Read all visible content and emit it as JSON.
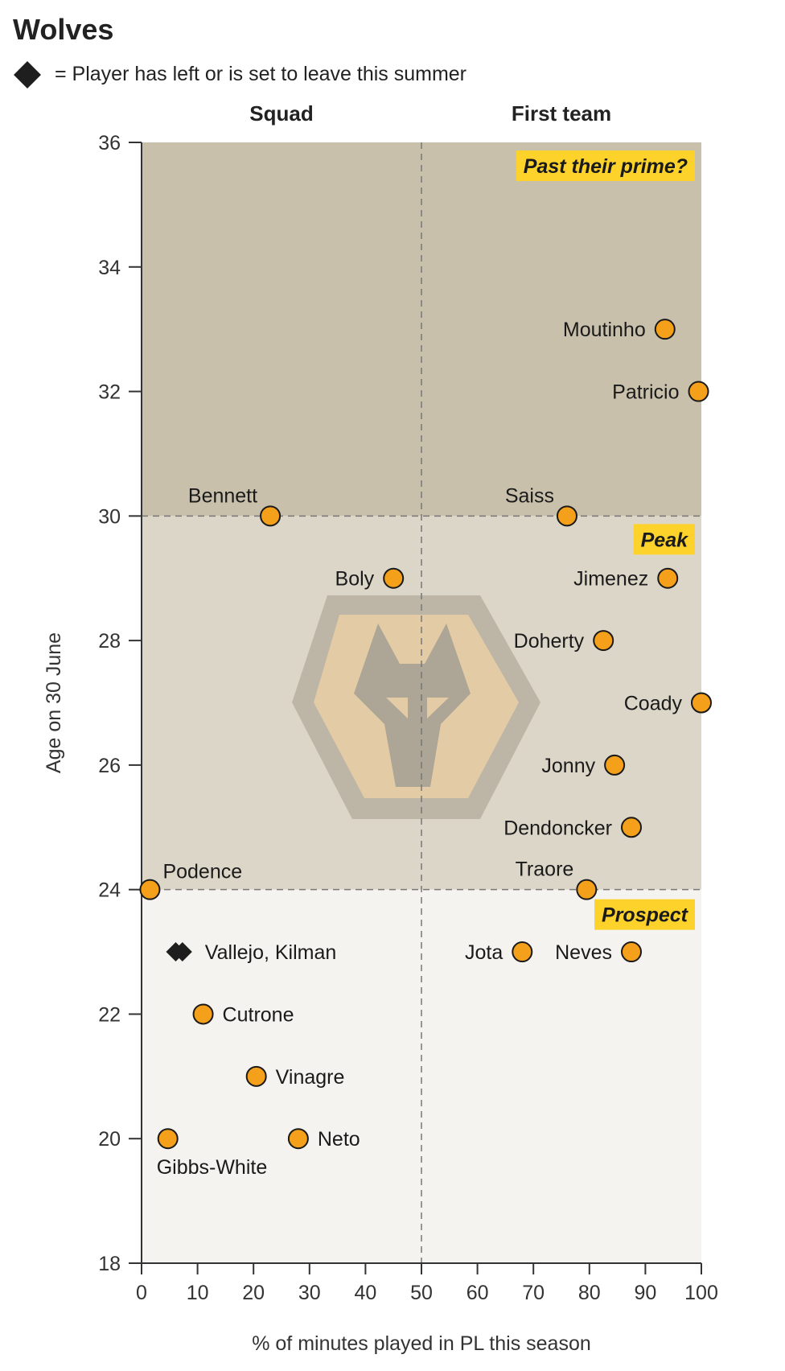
{
  "title": "Wolves",
  "legend": {
    "marker": "diamond",
    "text": "= Player has left or is set to leave this summer"
  },
  "colors": {
    "past_prime": "#c8c0ab",
    "peak": "#dcd6c8",
    "prospect": "#f4f3ef",
    "point": "#f5a01a",
    "left_marker": "#1e1e1e",
    "label_badge": "#fdd32b",
    "logo_outer": "#bdb5a6",
    "logo_inner": "#e3cba6",
    "logo_wolf": "#ada596"
  },
  "chart_data": {
    "type": "scatter",
    "xlabel": "% of minutes played in PL this season",
    "ylabel": "Age on 30 June",
    "xlim": [
      0,
      100
    ],
    "ylim": [
      18,
      36
    ],
    "xticks": [
      0,
      10,
      20,
      30,
      40,
      50,
      60,
      70,
      80,
      90,
      100
    ],
    "yticks": [
      18,
      20,
      22,
      24,
      26,
      28,
      30,
      32,
      34,
      36
    ],
    "column_headers": [
      {
        "label": "Squad",
        "x_center": 25
      },
      {
        "label": "First team",
        "x_center": 75
      }
    ],
    "dividers": {
      "x": 50,
      "y": [
        24,
        30
      ]
    },
    "zones": [
      {
        "label": "Past their prime?",
        "y_from": 30,
        "y_to": 36
      },
      {
        "label": "Peak",
        "y_from": 24,
        "y_to": 30
      },
      {
        "label": "Prospect",
        "y_from": 18,
        "y_to": 24
      }
    ],
    "points": [
      {
        "name": "Moutinho",
        "x": 93.5,
        "y": 33,
        "label_pos": "left"
      },
      {
        "name": "Patricio",
        "x": 99.5,
        "y": 32,
        "label_pos": "left"
      },
      {
        "name": "Bennett",
        "x": 23,
        "y": 30,
        "label_pos": "top-left"
      },
      {
        "name": "Saiss",
        "x": 76,
        "y": 30,
        "label_pos": "top-left"
      },
      {
        "name": "Boly",
        "x": 45,
        "y": 29,
        "label_pos": "left"
      },
      {
        "name": "Jimenez",
        "x": 94,
        "y": 29,
        "label_pos": "left"
      },
      {
        "name": "Doherty",
        "x": 82.5,
        "y": 28,
        "label_pos": "left"
      },
      {
        "name": "Coady",
        "x": 100,
        "y": 27,
        "label_pos": "left"
      },
      {
        "name": "Jonny",
        "x": 84.5,
        "y": 26,
        "label_pos": "left"
      },
      {
        "name": "Dendoncker",
        "x": 87.5,
        "y": 25,
        "label_pos": "left"
      },
      {
        "name": "Podence",
        "x": 1.5,
        "y": 24,
        "label_pos": "top-right"
      },
      {
        "name": "Traore",
        "x": 79.5,
        "y": 24,
        "label_pos": "top-left"
      },
      {
        "name": "Jota",
        "x": 68,
        "y": 23,
        "label_pos": "left"
      },
      {
        "name": "Neves",
        "x": 87.5,
        "y": 23,
        "label_pos": "left"
      },
      {
        "name": "Cutrone",
        "x": 11,
        "y": 22,
        "label_pos": "right"
      },
      {
        "name": "Vinagre",
        "x": 20.5,
        "y": 21,
        "label_pos": "right"
      },
      {
        "name": "Gibbs-White",
        "x": 4.7,
        "y": 20,
        "label_pos": "bottom"
      },
      {
        "name": "Neto",
        "x": 28,
        "y": 20,
        "label_pos": "right"
      }
    ],
    "left_club_points": [
      {
        "name": "Vallejo, Kilman",
        "x": [
          6.1,
          7.3
        ],
        "y": 23,
        "label_pos": "right"
      }
    ]
  }
}
